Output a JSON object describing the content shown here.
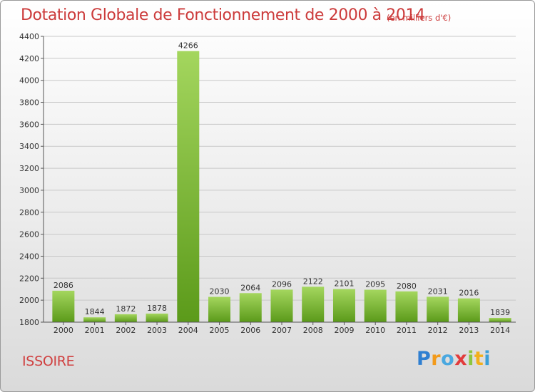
{
  "header": {
    "title": "Dotation Globale de Fonctionnement de 2000 à 2014",
    "unit": "(en milliers d'€)"
  },
  "footer": {
    "place": "ISSOIRE",
    "logo": "Proxiti"
  },
  "colors": {
    "bar_top": "#a4d65e",
    "bar_bottom": "#5b9a1a",
    "title": "#cc3b3b",
    "grid": "#c8c8c8",
    "axis": "#555555"
  },
  "chart_data": {
    "type": "bar",
    "categories": [
      "2000",
      "2001",
      "2002",
      "2003",
      "2004",
      "2005",
      "2006",
      "2007",
      "2008",
      "2009",
      "2010",
      "2011",
      "2012",
      "2013",
      "2014"
    ],
    "values": [
      2086,
      1844,
      1872,
      1878,
      4266,
      2030,
      2064,
      2096,
      2122,
      2101,
      2095,
      2080,
      2031,
      2016,
      1839
    ],
    "ylim": [
      1800,
      4400
    ],
    "yticks": [
      1800,
      2000,
      2200,
      2400,
      2600,
      2800,
      3000,
      3200,
      3400,
      3600,
      3800,
      4000,
      4200,
      4400
    ],
    "grid": true,
    "data_labels": true
  }
}
